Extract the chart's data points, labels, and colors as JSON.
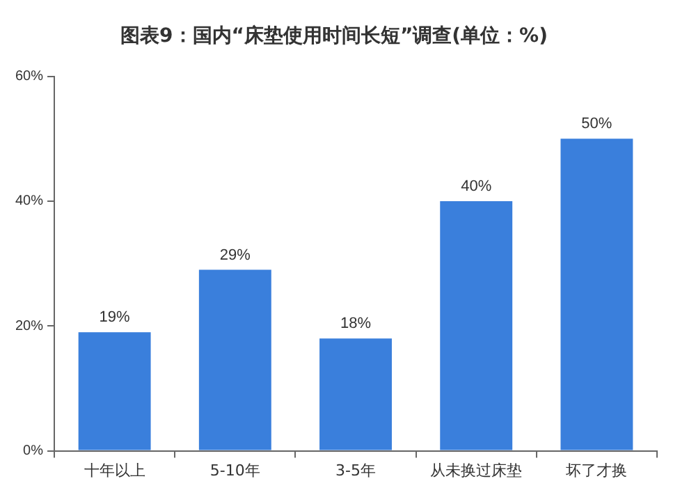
{
  "chart_data": {
    "type": "bar",
    "title": "图表9：国内“床垫使用时间长短”调查(单位：%)",
    "categories": [
      "十年以上",
      "5-10年",
      "3-5年",
      "从未换过床垫",
      "坏了才换"
    ],
    "values": [
      19,
      29,
      18,
      40,
      50
    ],
    "color": "#3a7fdc",
    "ylim": [
      0,
      60
    ],
    "yticks": [
      {
        "value": 0,
        "label": "0%"
      },
      {
        "value": 20,
        "label": "20%"
      },
      {
        "value": 40,
        "label": "40%"
      },
      {
        "value": 60,
        "label": "60%"
      }
    ],
    "value_labels": [
      "19%",
      "29%",
      "18%",
      "40%",
      "50%"
    ],
    "grid": false,
    "legend": false
  }
}
